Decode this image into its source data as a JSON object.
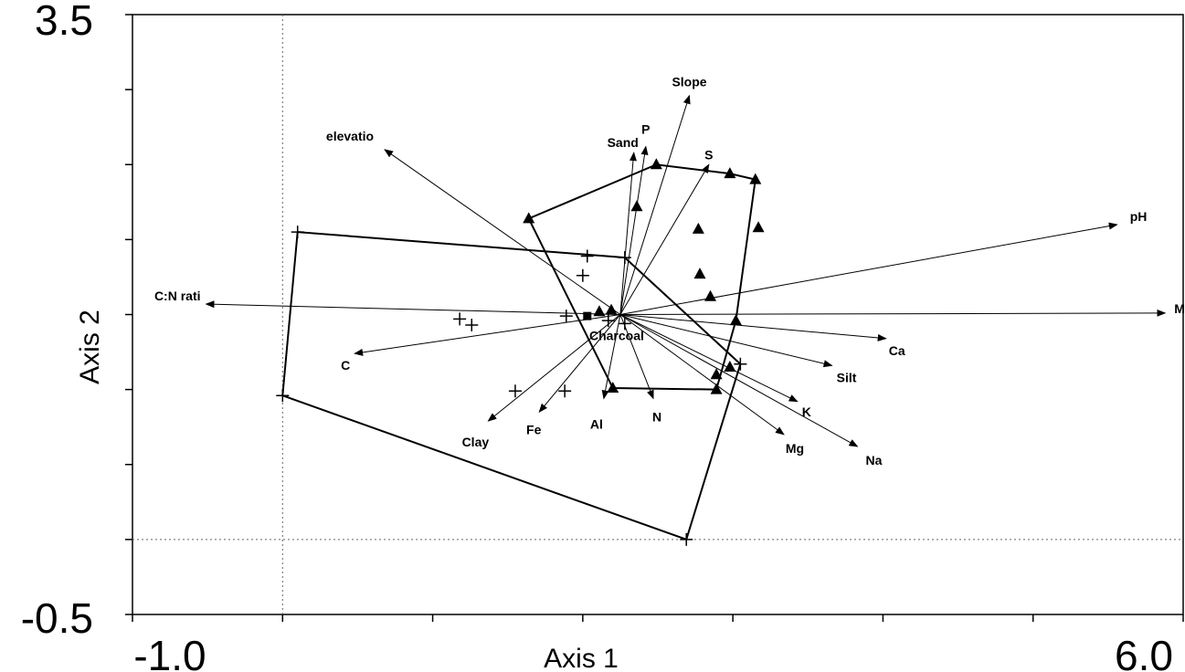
{
  "chart_data": {
    "type": "scatter",
    "subtype": "ordination-biplot",
    "xlabel": "Axis 1",
    "ylabel": "Axis 2",
    "xlim": [
      -1.0,
      6.0
    ],
    "ylim": [
      -0.5,
      3.5
    ],
    "x_tick_labels": [
      "-1.0",
      "6.0"
    ],
    "y_tick_labels": [
      "3.5",
      "-0.5"
    ],
    "reference_lines": {
      "x": 0.0,
      "y": 0.0
    },
    "origin": [
      2.25,
      1.5
    ],
    "vectors": [
      {
        "name": "Slope",
        "x": 2.71,
        "y": 2.96
      },
      {
        "name": "elevatio",
        "x": 0.68,
        "y": 2.6
      },
      {
        "name": "Sand",
        "x": 2.34,
        "y": 2.58
      },
      {
        "name": "P",
        "x": 2.42,
        "y": 2.62
      },
      {
        "name": "S",
        "x": 2.84,
        "y": 2.5
      },
      {
        "name": "pH",
        "x": 5.56,
        "y": 2.1
      },
      {
        "name": "C:N rati",
        "x": -0.51,
        "y": 1.57
      },
      {
        "name": "Mn",
        "x": 5.88,
        "y": 1.51
      },
      {
        "name": "C",
        "x": 0.48,
        "y": 1.24
      },
      {
        "name": "Charcoal",
        "x": 2.25,
        "y": 1.5
      },
      {
        "name": "Ca",
        "x": 4.02,
        "y": 1.34
      },
      {
        "name": "Silt",
        "x": 3.66,
        "y": 1.16
      },
      {
        "name": "K",
        "x": 3.43,
        "y": 0.92
      },
      {
        "name": "Al",
        "x": 2.14,
        "y": 0.94
      },
      {
        "name": "N",
        "x": 2.47,
        "y": 0.94
      },
      {
        "name": "Mg",
        "x": 3.34,
        "y": 0.7
      },
      {
        "name": "Na",
        "x": 3.83,
        "y": 0.62
      },
      {
        "name": "Fe",
        "x": 1.71,
        "y": 0.85
      },
      {
        "name": "Clay",
        "x": 1.37,
        "y": 0.79
      }
    ],
    "series": [
      {
        "marker": "triangle",
        "points": [
          [
            1.64,
            2.14
          ],
          [
            2.49,
            2.5
          ],
          [
            2.36,
            2.22
          ],
          [
            2.98,
            2.44
          ],
          [
            3.15,
            2.4
          ],
          [
            2.77,
            2.07
          ],
          [
            3.17,
            2.08
          ],
          [
            2.78,
            1.77
          ],
          [
            2.85,
            1.62
          ],
          [
            2.11,
            1.52
          ],
          [
            2.19,
            1.53
          ],
          [
            3.02,
            1.46
          ],
          [
            2.98,
            1.15
          ],
          [
            2.89,
            1.1
          ],
          [
            2.2,
            1.01
          ],
          [
            2.89,
            1.0
          ]
        ]
      },
      {
        "marker": "plus",
        "points": [
          [
            0.1,
            2.05
          ],
          [
            2.28,
            1.88
          ],
          [
            2.03,
            1.89
          ],
          [
            2.0,
            1.76
          ],
          [
            1.18,
            1.47
          ],
          [
            1.26,
            1.43
          ],
          [
            1.89,
            1.49
          ],
          [
            2.17,
            1.46
          ],
          [
            2.28,
            1.44
          ],
          [
            3.05,
            1.17
          ],
          [
            1.55,
            0.99
          ],
          [
            1.88,
            0.99
          ],
          [
            0.0,
            0.96
          ],
          [
            2.69,
            0.0
          ]
        ]
      },
      {
        "marker": "square",
        "points": [
          [
            2.03,
            1.49
          ]
        ]
      }
    ],
    "hulls": [
      [
        [
          1.64,
          2.14
        ],
        [
          2.49,
          2.5
        ],
        [
          2.98,
          2.44
        ],
        [
          3.15,
          2.4
        ],
        [
          3.02,
          1.46
        ],
        [
          2.89,
          1.0
        ],
        [
          2.2,
          1.01
        ],
        [
          1.64,
          2.14
        ]
      ],
      [
        [
          0.1,
          2.05
        ],
        [
          2.28,
          1.88
        ],
        [
          3.05,
          1.17
        ],
        [
          2.69,
          0.0
        ],
        [
          0.0,
          0.96
        ],
        [
          0.1,
          2.05
        ]
      ]
    ],
    "grid": false,
    "legend": "none"
  }
}
